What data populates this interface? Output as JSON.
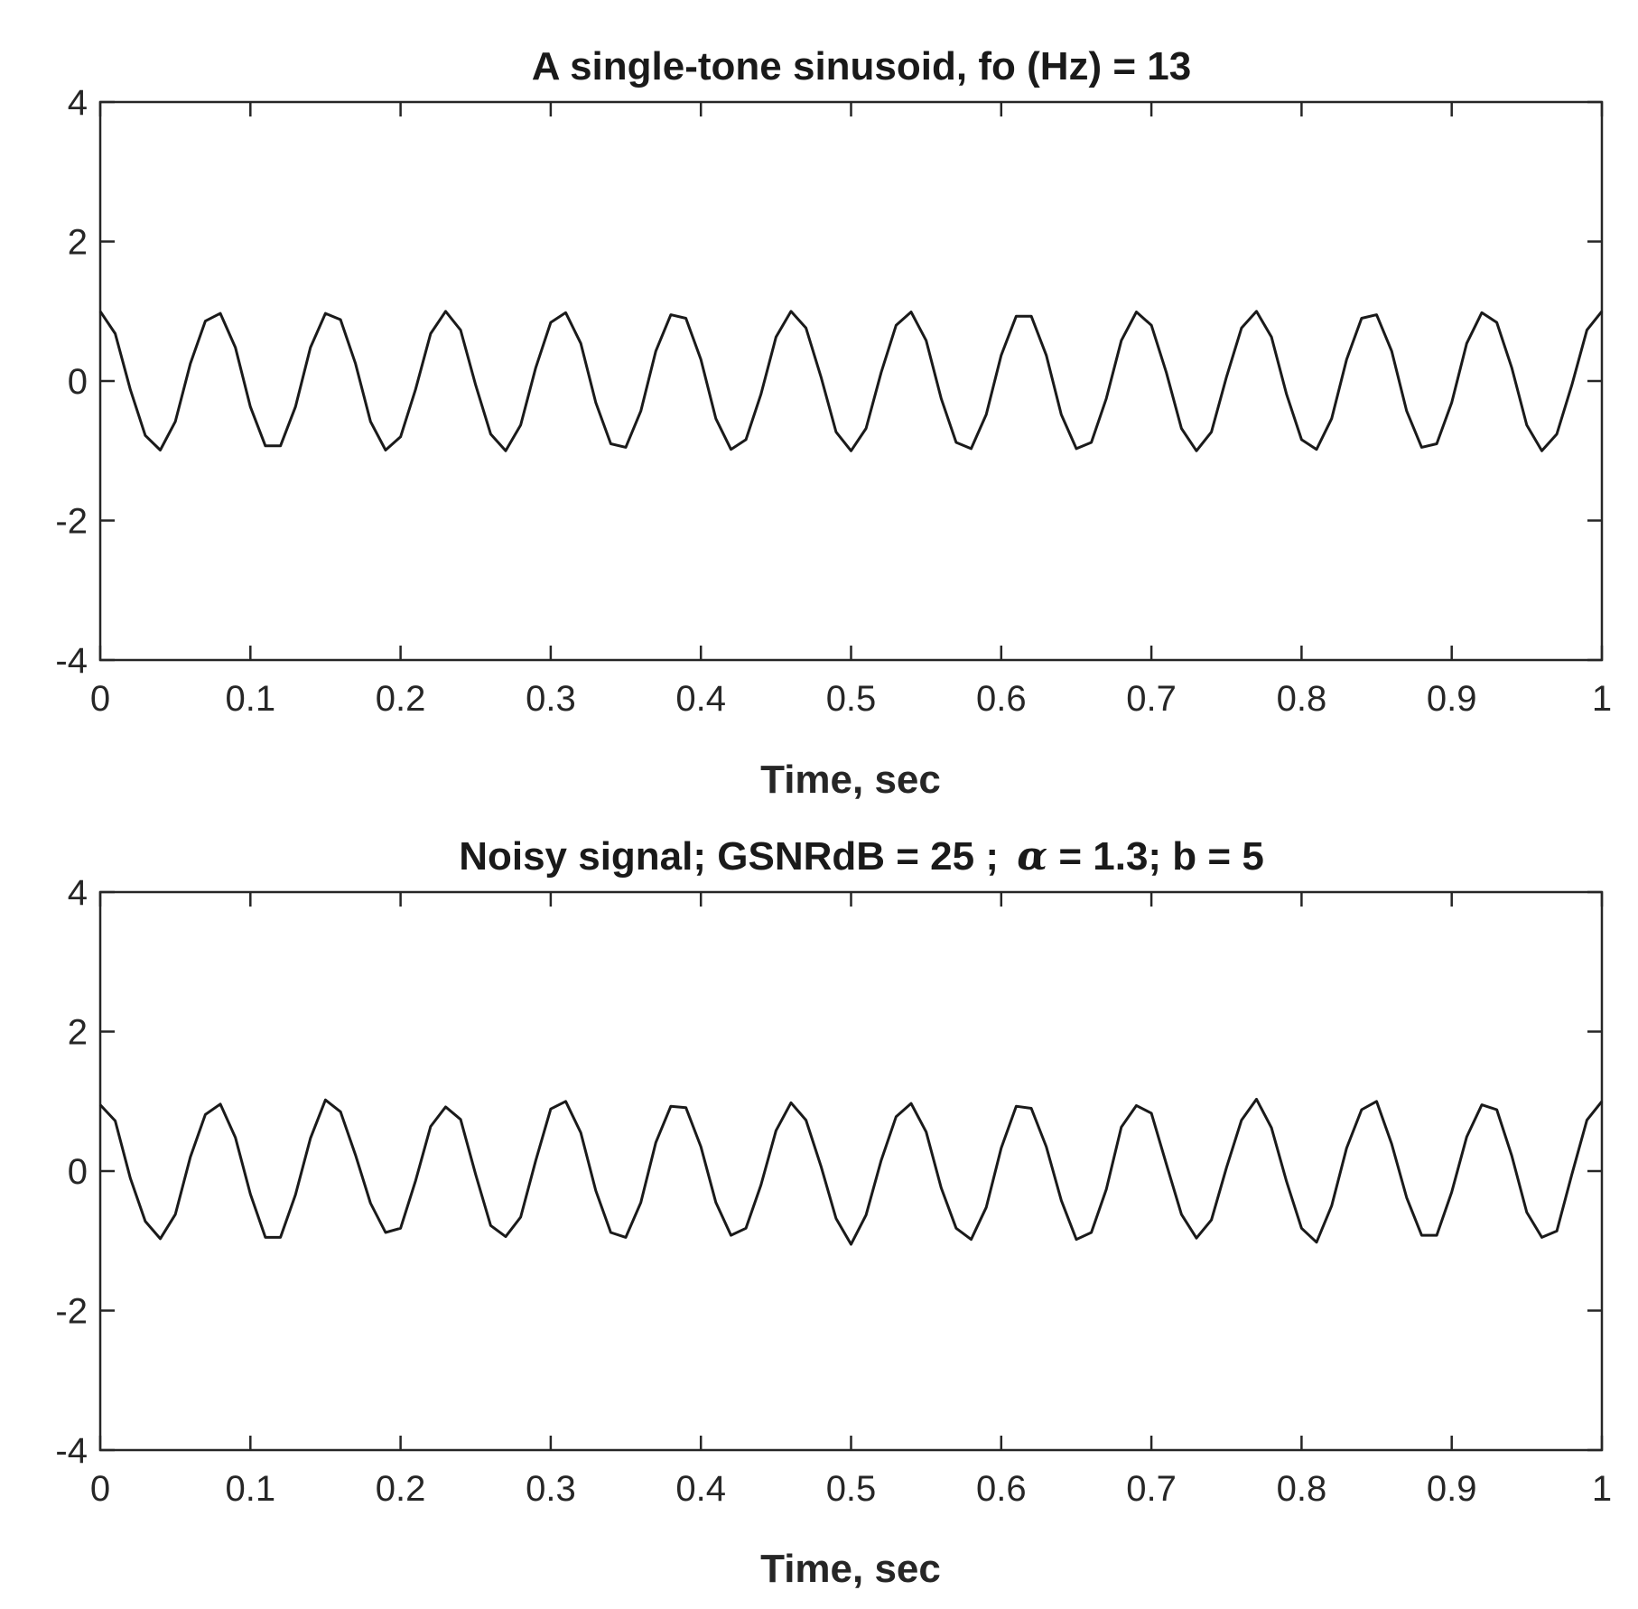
{
  "chart_data": [
    {
      "type": "line",
      "title": "A single-tone sinusoid, fo (Hz) = 13",
      "xlabel": "Time, sec",
      "ylabel": "",
      "xlim": [
        0,
        1
      ],
      "ylim": [
        -4,
        4
      ],
      "xticks": [
        0,
        0.1,
        0.2,
        0.3,
        0.4,
        0.5,
        0.6,
        0.7,
        0.8,
        0.9,
        1
      ],
      "xtick_labels": [
        "0",
        "0.1",
        "0.2",
        "0.3",
        "0.4",
        "0.5",
        "0.6",
        "0.7",
        "0.8",
        "0.9",
        "1"
      ],
      "yticks": [
        -4,
        -2,
        0,
        2,
        4
      ],
      "ytick_labels": [
        "-4",
        "-2",
        "0",
        "2",
        "4"
      ],
      "grid": false,
      "line_color": "#1a1a1a",
      "series": [
        {
          "x": [
            0,
            0.01,
            0.02,
            0.03,
            0.04,
            0.05,
            0.06,
            0.07,
            0.08,
            0.09,
            0.1,
            0.11,
            0.12,
            0.13,
            0.14,
            0.15,
            0.16,
            0.17,
            0.18,
            0.19,
            0.2,
            0.21,
            0.22,
            0.23,
            0.24,
            0.25,
            0.26,
            0.27,
            0.28,
            0.29,
            0.3,
            0.31,
            0.32,
            0.33,
            0.34,
            0.35,
            0.36,
            0.37,
            0.38,
            0.39,
            0.4,
            0.41,
            0.42,
            0.43,
            0.44,
            0.45,
            0.46,
            0.47,
            0.48,
            0.49,
            0.5,
            0.51,
            0.52,
            0.53,
            0.54,
            0.55,
            0.56,
            0.57,
            0.58,
            0.59,
            0.6,
            0.61,
            0.62,
            0.63,
            0.64,
            0.65,
            0.66,
            0.67,
            0.68,
            0.69,
            0.7,
            0.71,
            0.72,
            0.73,
            0.74,
            0.75,
            0.76,
            0.77,
            0.78,
            0.79,
            0.8,
            0.81,
            0.82,
            0.83,
            0.84,
            0.85,
            0.86,
            0.87,
            0.88,
            0.89,
            0.9,
            0.91,
            0.92,
            0.93,
            0.94,
            0.95,
            0.96,
            0.97,
            0.98,
            0.99,
            1
          ],
          "y": [
            1,
            0.68,
            -0.12,
            -0.78,
            -0.99,
            -0.58,
            0.25,
            0.86,
            0.97,
            0.48,
            -0.37,
            -0.93,
            -0.93,
            -0.37,
            0.48,
            0.97,
            0.88,
            0.25,
            -0.58,
            -0.99,
            -0.8,
            -0.12,
            0.68,
            1,
            0.73,
            -0.06,
            -0.76,
            -1,
            -0.63,
            0.19,
            0.84,
            0.98,
            0.54,
            -0.31,
            -0.9,
            -0.95,
            -0.43,
            0.43,
            0.95,
            0.9,
            0.31,
            -0.54,
            -0.98,
            -0.84,
            -0.19,
            0.63,
            1,
            0.76,
            0.06,
            -0.73,
            -1,
            -0.68,
            0.12,
            0.8,
            0.99,
            0.58,
            -0.25,
            -0.88,
            -0.97,
            -0.48,
            0.37,
            0.93,
            0.93,
            0.37,
            -0.48,
            -0.97,
            -0.88,
            -0.25,
            0.58,
            0.99,
            0.8,
            0.12,
            -0.68,
            -1,
            -0.73,
            0.06,
            0.76,
            1,
            0.63,
            -0.19,
            -0.84,
            -0.98,
            -0.54,
            0.31,
            0.9,
            0.95,
            0.43,
            -0.43,
            -0.95,
            -0.9,
            -0.31,
            0.54,
            0.98,
            0.84,
            0.19,
            -0.63,
            -1,
            -0.76,
            -0.06,
            0.73,
            1
          ]
        }
      ]
    },
    {
      "type": "line",
      "title": "Noisy signal; GSNRdB = 25 ;",
      "title_symbol": "α",
      "title_suffix": " = 1.3; b = 5",
      "xlabel": "Time, sec",
      "ylabel": "",
      "xlim": [
        0,
        1
      ],
      "ylim": [
        -4,
        4
      ],
      "xticks": [
        0,
        0.1,
        0.2,
        0.3,
        0.4,
        0.5,
        0.6,
        0.7,
        0.8,
        0.9,
        1
      ],
      "xtick_labels": [
        "0",
        "0.1",
        "0.2",
        "0.3",
        "0.4",
        "0.5",
        "0.6",
        "0.7",
        "0.8",
        "0.9",
        "1"
      ],
      "yticks": [
        -4,
        -2,
        0,
        2,
        4
      ],
      "ytick_labels": [
        "-4",
        "-2",
        "0",
        "2",
        "4"
      ],
      "grid": false,
      "line_color": "#1a1a1a",
      "series": [
        {
          "x": [
            0,
            0.01,
            0.02,
            0.03,
            0.04,
            0.05,
            0.06,
            0.07,
            0.08,
            0.09,
            0.1,
            0.11,
            0.12,
            0.13,
            0.14,
            0.15,
            0.16,
            0.17,
            0.18,
            0.19,
            0.2,
            0.21,
            0.22,
            0.23,
            0.24,
            0.25,
            0.26,
            0.27,
            0.28,
            0.29,
            0.3,
            0.31,
            0.32,
            0.33,
            0.34,
            0.35,
            0.36,
            0.37,
            0.38,
            0.39,
            0.4,
            0.41,
            0.42,
            0.43,
            0.44,
            0.45,
            0.46,
            0.47,
            0.48,
            0.49,
            0.5,
            0.51,
            0.52,
            0.53,
            0.54,
            0.55,
            0.56,
            0.57,
            0.58,
            0.59,
            0.6,
            0.61,
            0.62,
            0.63,
            0.64,
            0.65,
            0.66,
            0.67,
            0.68,
            0.69,
            0.7,
            0.71,
            0.72,
            0.73,
            0.74,
            0.75,
            0.76,
            0.77,
            0.78,
            0.79,
            0.8,
            0.81,
            0.82,
            0.83,
            0.84,
            0.85,
            0.86,
            0.87,
            0.88,
            0.89,
            0.9,
            0.91,
            0.92,
            0.93,
            0.94,
            0.95,
            0.96,
            0.97,
            0.98,
            0.99,
            1
          ],
          "y": [
            0.95,
            0.72,
            -0.1,
            -0.72,
            -0.97,
            -0.62,
            0.2,
            0.81,
            0.96,
            0.48,
            -0.33,
            -0.95,
            -0.95,
            -0.34,
            0.47,
            1.02,
            0.85,
            0.23,
            -0.46,
            -0.88,
            -0.82,
            -0.14,
            0.64,
            0.92,
            0.74,
            -0.05,
            -0.78,
            -0.94,
            -0.66,
            0.15,
            0.89,
            1,
            0.55,
            -0.28,
            -0.88,
            -0.95,
            -0.45,
            0.41,
            0.93,
            0.91,
            0.35,
            -0.45,
            -0.92,
            -0.82,
            -0.2,
            0.58,
            0.98,
            0.73,
            0.07,
            -0.68,
            -1.05,
            -0.63,
            0.15,
            0.78,
            0.97,
            0.56,
            -0.24,
            -0.82,
            -0.98,
            -0.52,
            0.33,
            0.93,
            0.9,
            0.35,
            -0.42,
            -0.98,
            -0.88,
            -0.26,
            0.63,
            0.94,
            0.83,
            0.1,
            -0.62,
            -0.96,
            -0.7,
            0.05,
            0.73,
            1.03,
            0.62,
            -0.15,
            -0.82,
            -1.02,
            -0.5,
            0.33,
            0.88,
            1,
            0.39,
            -0.38,
            -0.92,
            -0.92,
            -0.3,
            0.49,
            0.95,
            0.88,
            0.22,
            -0.59,
            -0.95,
            -0.86,
            -0.05,
            0.73,
            1
          ]
        }
      ]
    }
  ]
}
